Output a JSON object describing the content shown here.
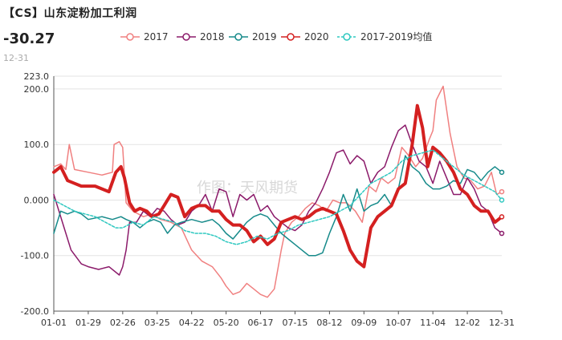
{
  "header": {
    "title": "【CS】山东淀粉加工利润",
    "latest_value": "-30.27",
    "latest_date": "12-31"
  },
  "watermark": "作图：天风期货",
  "chart_data": {
    "type": "line",
    "title": "【CS】山东淀粉加工利润",
    "xlabel": "",
    "ylabel": "",
    "ylim": [
      -200,
      223
    ],
    "y_ticks": [
      -200,
      -100,
      0,
      100,
      200,
      223
    ],
    "y_tick_labels": [
      "-200.0",
      "-100.0",
      "0.000",
      "100.0",
      "200.0",
      "223.0"
    ],
    "x_tick_labels": [
      "01-01",
      "01-29",
      "02-26",
      "03-25",
      "04-22",
      "05-20",
      "06-17",
      "07-15",
      "08-12",
      "09-09",
      "10-07",
      "11-04",
      "12-02",
      "12-31"
    ],
    "x_domain": [
      0,
      13
    ],
    "grid": true,
    "legend_position": "top",
    "series": [
      {
        "name": "2017",
        "color": "#f08080",
        "width": 1.5,
        "dash": "",
        "points": [
          [
            0,
            60
          ],
          [
            0.2,
            65
          ],
          [
            0.35,
            55
          ],
          [
            0.45,
            100
          ],
          [
            0.6,
            55
          ],
          [
            1.0,
            50
          ],
          [
            1.4,
            45
          ],
          [
            1.7,
            50
          ],
          [
            1.75,
            100
          ],
          [
            1.9,
            105
          ],
          [
            2.0,
            95
          ],
          [
            2.1,
            -5
          ],
          [
            2.3,
            -20
          ],
          [
            2.6,
            -30
          ],
          [
            2.85,
            -25
          ],
          [
            3.1,
            -35
          ],
          [
            3.4,
            -40
          ],
          [
            3.7,
            -50
          ],
          [
            4.0,
            -90
          ],
          [
            4.3,
            -110
          ],
          [
            4.6,
            -120
          ],
          [
            4.85,
            -140
          ],
          [
            5.0,
            -155
          ],
          [
            5.2,
            -170
          ],
          [
            5.4,
            -165
          ],
          [
            5.6,
            -150
          ],
          [
            5.8,
            -160
          ],
          [
            6.0,
            -170
          ],
          [
            6.2,
            -175
          ],
          [
            6.4,
            -160
          ],
          [
            6.6,
            -90
          ],
          [
            6.7,
            -60
          ],
          [
            6.9,
            -40
          ],
          [
            7.1,
            -30
          ],
          [
            7.3,
            -15
          ],
          [
            7.5,
            -5
          ],
          [
            7.7,
            -10
          ],
          [
            7.9,
            -20
          ],
          [
            8.1,
            0
          ],
          [
            8.3,
            -5
          ],
          [
            8.5,
            -5
          ],
          [
            8.75,
            -20
          ],
          [
            8.95,
            -40
          ],
          [
            9.15,
            25
          ],
          [
            9.35,
            15
          ],
          [
            9.5,
            40
          ],
          [
            9.7,
            30
          ],
          [
            9.9,
            40
          ],
          [
            10.1,
            95
          ],
          [
            10.3,
            80
          ],
          [
            10.5,
            60
          ],
          [
            10.7,
            75
          ],
          [
            10.9,
            110
          ],
          [
            11.0,
            125
          ],
          [
            11.1,
            180
          ],
          [
            11.3,
            205
          ],
          [
            11.5,
            120
          ],
          [
            11.7,
            60
          ],
          [
            11.9,
            40
          ],
          [
            12.1,
            35
          ],
          [
            12.3,
            20
          ],
          [
            12.5,
            25
          ],
          [
            12.7,
            50
          ],
          [
            12.85,
            10
          ],
          [
            13.0,
            15
          ]
        ]
      },
      {
        "name": "2018",
        "color": "#8b1a6a",
        "width": 1.5,
        "dash": "",
        "points": [
          [
            0,
            10
          ],
          [
            0.3,
            -50
          ],
          [
            0.5,
            -90
          ],
          [
            0.8,
            -115
          ],
          [
            1.0,
            -120
          ],
          [
            1.3,
            -125
          ],
          [
            1.6,
            -120
          ],
          [
            1.9,
            -135
          ],
          [
            2.0,
            -120
          ],
          [
            2.1,
            -90
          ],
          [
            2.2,
            -40
          ],
          [
            2.4,
            -40
          ],
          [
            2.6,
            -20
          ],
          [
            2.8,
            -30
          ],
          [
            3.0,
            -15
          ],
          [
            3.2,
            -20
          ],
          [
            3.4,
            -35
          ],
          [
            3.6,
            -45
          ],
          [
            3.8,
            -40
          ],
          [
            4.0,
            -20
          ],
          [
            4.2,
            -10
          ],
          [
            4.4,
            10
          ],
          [
            4.6,
            -20
          ],
          [
            4.8,
            20
          ],
          [
            5.0,
            15
          ],
          [
            5.2,
            -30
          ],
          [
            5.4,
            10
          ],
          [
            5.6,
            0
          ],
          [
            5.8,
            10
          ],
          [
            6.0,
            -20
          ],
          [
            6.2,
            -10
          ],
          [
            6.4,
            -30
          ],
          [
            6.6,
            -40
          ],
          [
            6.8,
            -50
          ],
          [
            7.0,
            -55
          ],
          [
            7.2,
            -45
          ],
          [
            7.4,
            -20
          ],
          [
            7.6,
            -5
          ],
          [
            7.8,
            20
          ],
          [
            8.0,
            50
          ],
          [
            8.2,
            85
          ],
          [
            8.4,
            90
          ],
          [
            8.6,
            65
          ],
          [
            8.8,
            80
          ],
          [
            9.0,
            70
          ],
          [
            9.2,
            30
          ],
          [
            9.4,
            50
          ],
          [
            9.6,
            60
          ],
          [
            9.8,
            95
          ],
          [
            10.0,
            125
          ],
          [
            10.2,
            135
          ],
          [
            10.4,
            100
          ],
          [
            10.6,
            70
          ],
          [
            10.8,
            60
          ],
          [
            11.0,
            30
          ],
          [
            11.2,
            70
          ],
          [
            11.4,
            40
          ],
          [
            11.6,
            10
          ],
          [
            11.8,
            10
          ],
          [
            12.0,
            40
          ],
          [
            12.2,
            20
          ],
          [
            12.4,
            -10
          ],
          [
            12.6,
            -20
          ],
          [
            12.8,
            -50
          ],
          [
            13.0,
            -60
          ]
        ]
      },
      {
        "name": "2019",
        "color": "#168a8a",
        "width": 1.5,
        "dash": "",
        "points": [
          [
            0,
            -60
          ],
          [
            0.2,
            -20
          ],
          [
            0.4,
            -25
          ],
          [
            0.6,
            -20
          ],
          [
            0.8,
            -25
          ],
          [
            1.0,
            -35
          ],
          [
            1.4,
            -30
          ],
          [
            1.7,
            -35
          ],
          [
            1.95,
            -30
          ],
          [
            2.1,
            -35
          ],
          [
            2.3,
            -40
          ],
          [
            2.5,
            -50
          ],
          [
            2.7,
            -40
          ],
          [
            2.9,
            -35
          ],
          [
            3.1,
            -40
          ],
          [
            3.3,
            -60
          ],
          [
            3.5,
            -45
          ],
          [
            3.7,
            -40
          ],
          [
            4.0,
            -35
          ],
          [
            4.3,
            -40
          ],
          [
            4.6,
            -35
          ],
          [
            4.8,
            -45
          ],
          [
            5.0,
            -60
          ],
          [
            5.2,
            -70
          ],
          [
            5.4,
            -55
          ],
          [
            5.6,
            -40
          ],
          [
            5.8,
            -30
          ],
          [
            6.0,
            -25
          ],
          [
            6.2,
            -30
          ],
          [
            6.4,
            -45
          ],
          [
            6.6,
            -60
          ],
          [
            6.8,
            -70
          ],
          [
            7.0,
            -80
          ],
          [
            7.2,
            -90
          ],
          [
            7.4,
            -100
          ],
          [
            7.6,
            -100
          ],
          [
            7.8,
            -95
          ],
          [
            8.0,
            -60
          ],
          [
            8.2,
            -30
          ],
          [
            8.4,
            10
          ],
          [
            8.6,
            -20
          ],
          [
            8.8,
            20
          ],
          [
            9.0,
            -20
          ],
          [
            9.2,
            -10
          ],
          [
            9.4,
            -5
          ],
          [
            9.6,
            10
          ],
          [
            9.8,
            -10
          ],
          [
            10.0,
            20
          ],
          [
            10.2,
            80
          ],
          [
            10.4,
            60
          ],
          [
            10.6,
            50
          ],
          [
            10.8,
            30
          ],
          [
            11.0,
            20
          ],
          [
            11.2,
            20
          ],
          [
            11.4,
            25
          ],
          [
            11.6,
            35
          ],
          [
            11.8,
            30
          ],
          [
            12.0,
            55
          ],
          [
            12.2,
            50
          ],
          [
            12.4,
            35
          ],
          [
            12.6,
            50
          ],
          [
            12.8,
            60
          ],
          [
            13.0,
            50
          ]
        ]
      },
      {
        "name": "2020",
        "color": "#d42020",
        "width": 4,
        "dash": "",
        "points": [
          [
            0,
            50
          ],
          [
            0.2,
            60
          ],
          [
            0.4,
            35
          ],
          [
            0.6,
            30
          ],
          [
            0.8,
            25
          ],
          [
            1.0,
            25
          ],
          [
            1.2,
            25
          ],
          [
            1.4,
            20
          ],
          [
            1.6,
            15
          ],
          [
            1.8,
            50
          ],
          [
            1.95,
            60
          ],
          [
            2.05,
            40
          ],
          [
            2.2,
            -5
          ],
          [
            2.35,
            -20
          ],
          [
            2.5,
            -15
          ],
          [
            2.7,
            -20
          ],
          [
            2.85,
            -30
          ],
          [
            3.05,
            -25
          ],
          [
            3.2,
            -10
          ],
          [
            3.4,
            10
          ],
          [
            3.6,
            5
          ],
          [
            3.8,
            -30
          ],
          [
            4.0,
            -15
          ],
          [
            4.2,
            -10
          ],
          [
            4.4,
            -10
          ],
          [
            4.6,
            -20
          ],
          [
            4.8,
            -20
          ],
          [
            5.0,
            -35
          ],
          [
            5.2,
            -45
          ],
          [
            5.4,
            -45
          ],
          [
            5.6,
            -55
          ],
          [
            5.8,
            -75
          ],
          [
            6.0,
            -65
          ],
          [
            6.2,
            -80
          ],
          [
            6.4,
            -70
          ],
          [
            6.6,
            -40
          ],
          [
            6.8,
            -35
          ],
          [
            7.0,
            -30
          ],
          [
            7.2,
            -35
          ],
          [
            7.4,
            -30
          ],
          [
            7.6,
            -20
          ],
          [
            7.8,
            -15
          ],
          [
            8.0,
            -20
          ],
          [
            8.2,
            -25
          ],
          [
            8.4,
            -55
          ],
          [
            8.6,
            -90
          ],
          [
            8.8,
            -110
          ],
          [
            9.0,
            -120
          ],
          [
            9.2,
            -50
          ],
          [
            9.4,
            -30
          ],
          [
            9.6,
            -20
          ],
          [
            9.8,
            -10
          ],
          [
            10.0,
            20
          ],
          [
            10.2,
            30
          ],
          [
            10.4,
            100
          ],
          [
            10.55,
            170
          ],
          [
            10.7,
            130
          ],
          [
            10.85,
            60
          ],
          [
            11.0,
            95
          ],
          [
            11.2,
            85
          ],
          [
            11.4,
            70
          ],
          [
            11.6,
            50
          ],
          [
            11.8,
            20
          ],
          [
            12.0,
            10
          ],
          [
            12.2,
            -10
          ],
          [
            12.4,
            -20
          ],
          [
            12.6,
            -20
          ],
          [
            12.8,
            -40
          ],
          [
            13.0,
            -30.27
          ]
        ]
      },
      {
        "name": "2017-2019均值",
        "color": "#2ec8c0",
        "width": 1.5,
        "dash": "3,2",
        "points": [
          [
            0,
            0
          ],
          [
            0.3,
            -10
          ],
          [
            0.6,
            -20
          ],
          [
            0.9,
            -25
          ],
          [
            1.2,
            -30
          ],
          [
            1.5,
            -40
          ],
          [
            1.8,
            -50
          ],
          [
            2.0,
            -50
          ],
          [
            2.3,
            -40
          ],
          [
            2.6,
            -45
          ],
          [
            2.9,
            -30
          ],
          [
            3.2,
            -35
          ],
          [
            3.5,
            -40
          ],
          [
            3.8,
            -55
          ],
          [
            4.1,
            -60
          ],
          [
            4.4,
            -60
          ],
          [
            4.7,
            -65
          ],
          [
            5.0,
            -75
          ],
          [
            5.3,
            -80
          ],
          [
            5.6,
            -75
          ],
          [
            5.9,
            -65
          ],
          [
            6.2,
            -70
          ],
          [
            6.5,
            -60
          ],
          [
            6.8,
            -55
          ],
          [
            7.1,
            -45
          ],
          [
            7.4,
            -40
          ],
          [
            7.7,
            -35
          ],
          [
            8.0,
            -30
          ],
          [
            8.3,
            -20
          ],
          [
            8.6,
            -10
          ],
          [
            8.9,
            10
          ],
          [
            9.2,
            30
          ],
          [
            9.5,
            40
          ],
          [
            9.8,
            50
          ],
          [
            10.1,
            70
          ],
          [
            10.4,
            80
          ],
          [
            10.7,
            85
          ],
          [
            11.0,
            90
          ],
          [
            11.3,
            75
          ],
          [
            11.6,
            60
          ],
          [
            11.9,
            45
          ],
          [
            12.2,
            35
          ],
          [
            12.5,
            25
          ],
          [
            12.8,
            15
          ],
          [
            13.0,
            0
          ]
        ]
      }
    ]
  }
}
